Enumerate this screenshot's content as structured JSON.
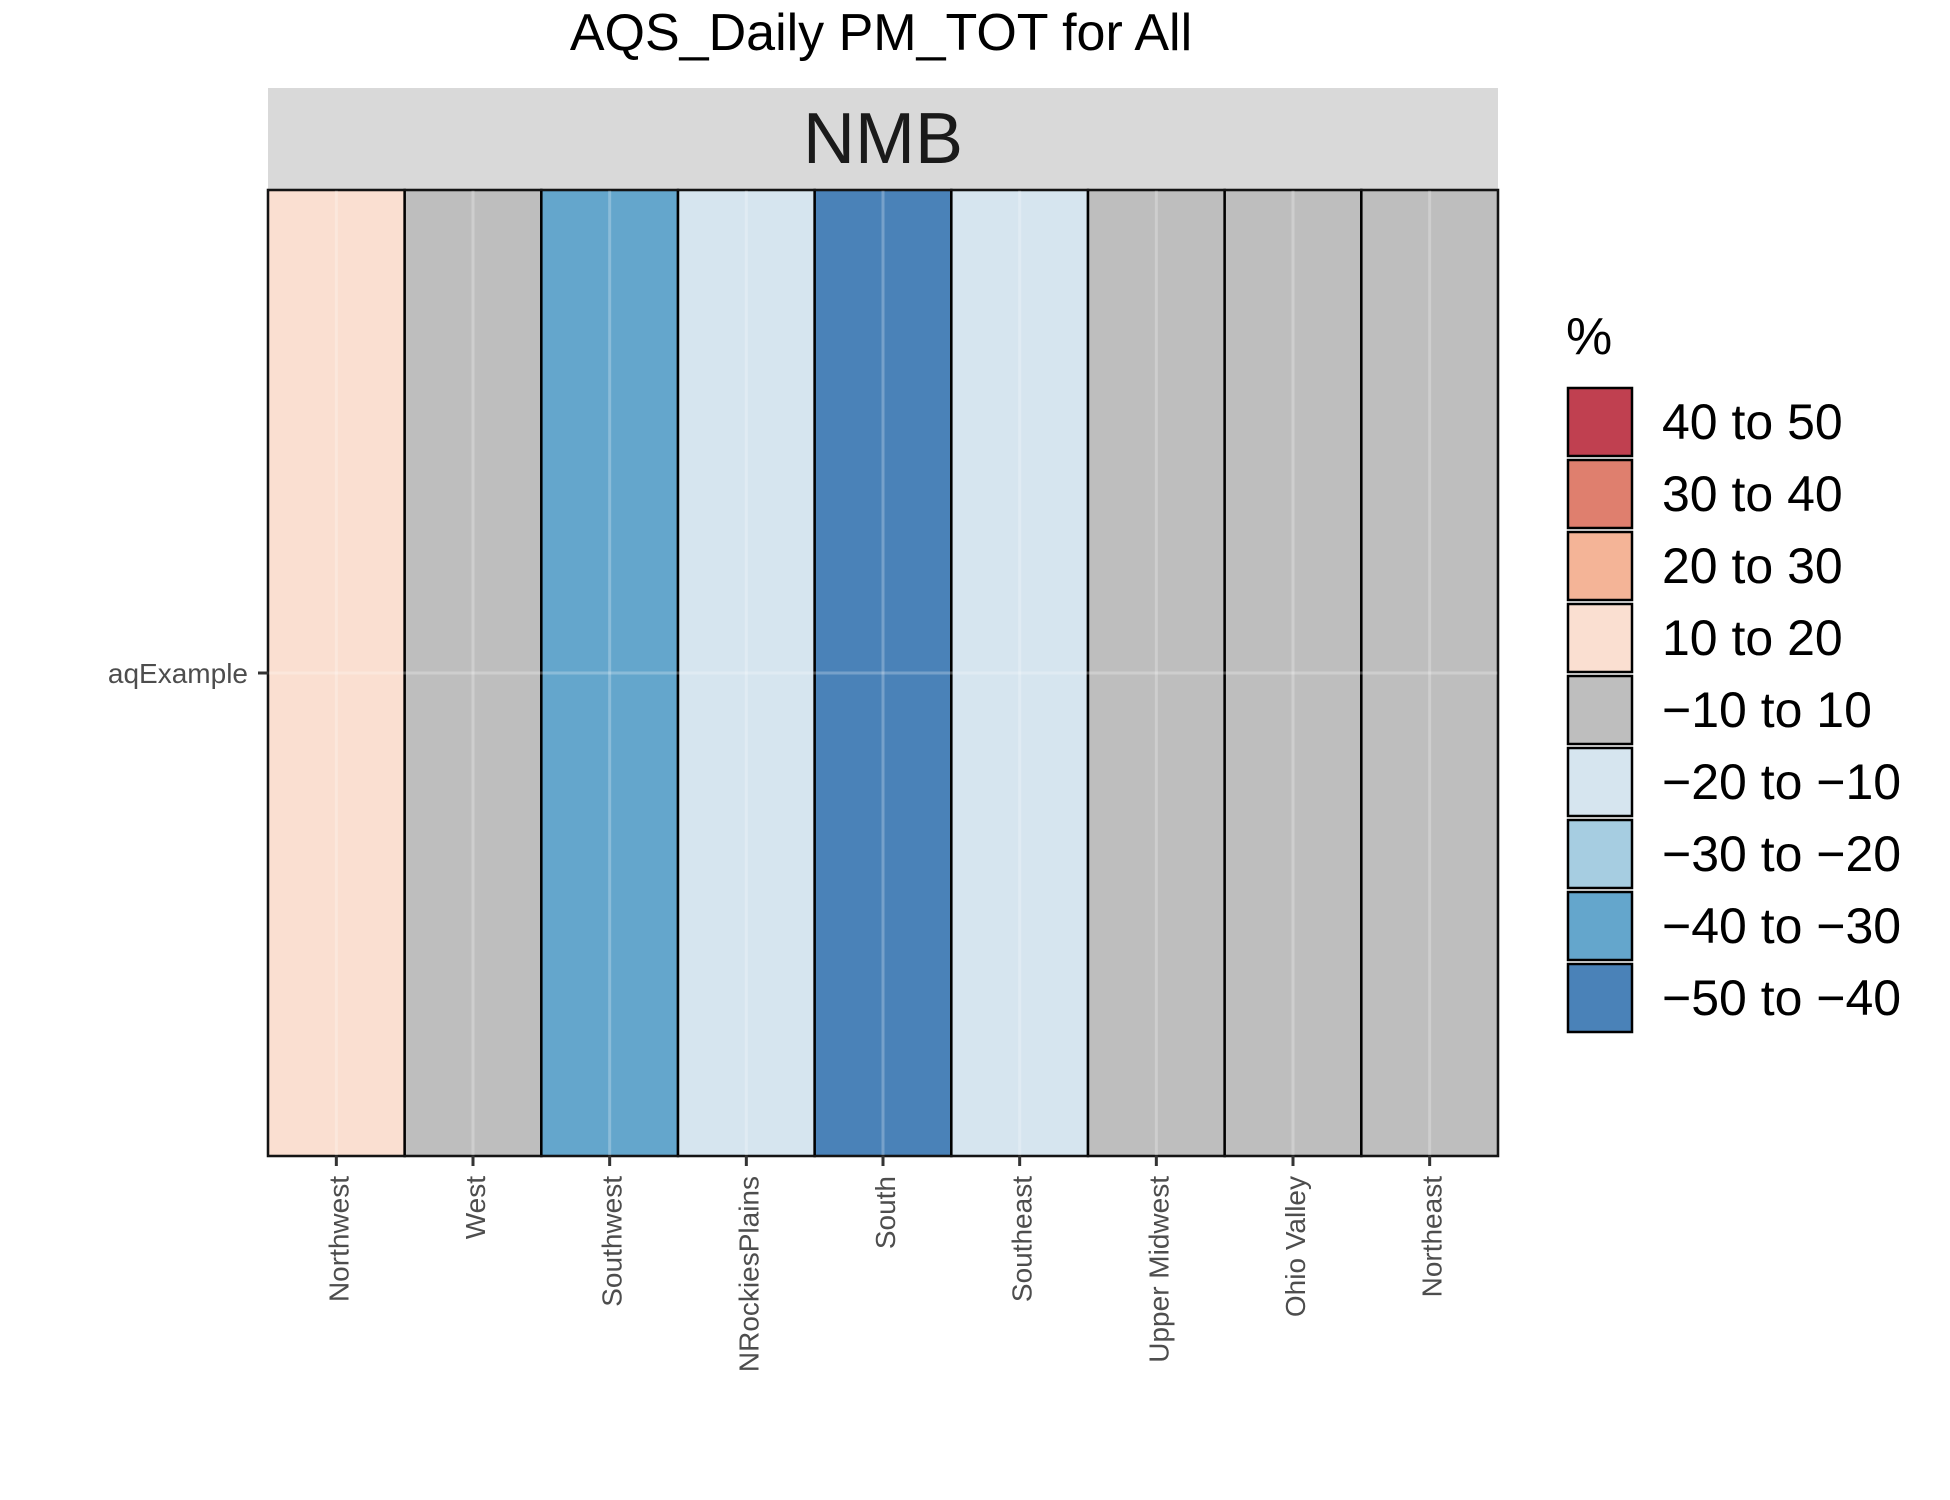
{
  "chart_data": {
    "type": "heatmap",
    "title": "AQS_Daily PM_TOT for All",
    "facet": "NMB",
    "xlabel": "",
    "ylabel": "",
    "y_categories": [
      "aqExample"
    ],
    "x_categories": [
      "Northwest",
      "West",
      "Southwest",
      "NRockiesPlains",
      "South",
      "Southeast",
      "Upper Midwest",
      "Ohio Valley",
      "Northeast"
    ],
    "cells": [
      {
        "x": "Northwest",
        "y": "aqExample",
        "bin": "10 to 20"
      },
      {
        "x": "West",
        "y": "aqExample",
        "bin": "−10 to 10"
      },
      {
        "x": "Southwest",
        "y": "aqExample",
        "bin": "−40 to −30"
      },
      {
        "x": "NRockiesPlains",
        "y": "aqExample",
        "bin": "−20 to −10"
      },
      {
        "x": "South",
        "y": "aqExample",
        "bin": "−50 to −40"
      },
      {
        "x": "Southeast",
        "y": "aqExample",
        "bin": "−20 to −10"
      },
      {
        "x": "Upper Midwest",
        "y": "aqExample",
        "bin": "−10 to 10"
      },
      {
        "x": "Ohio Valley",
        "y": "aqExample",
        "bin": "−10 to 10"
      },
      {
        "x": "Northeast",
        "y": "aqExample",
        "bin": "−10 to 10"
      }
    ],
    "legend": {
      "title": "%",
      "placement": "right",
      "entries": [
        {
          "label": "40 to 50",
          "color": "#c04050"
        },
        {
          "label": "30 to 40",
          "color": "#df7f6e"
        },
        {
          "label": "20 to 30",
          "color": "#f4b497"
        },
        {
          "label": "10 to 20",
          "color": "#fadfd1"
        },
        {
          "label": "−10 to 10",
          "color": "#bebebe"
        },
        {
          "label": "−20 to −10",
          "color": "#d6e5ef"
        },
        {
          "label": "−30 to −20",
          "color": "#a6cde1"
        },
        {
          "label": "−40 to −30",
          "color": "#64a6cc"
        },
        {
          "label": "−50 to −40",
          "color": "#4a82b8"
        }
      ]
    },
    "grid": true
  }
}
